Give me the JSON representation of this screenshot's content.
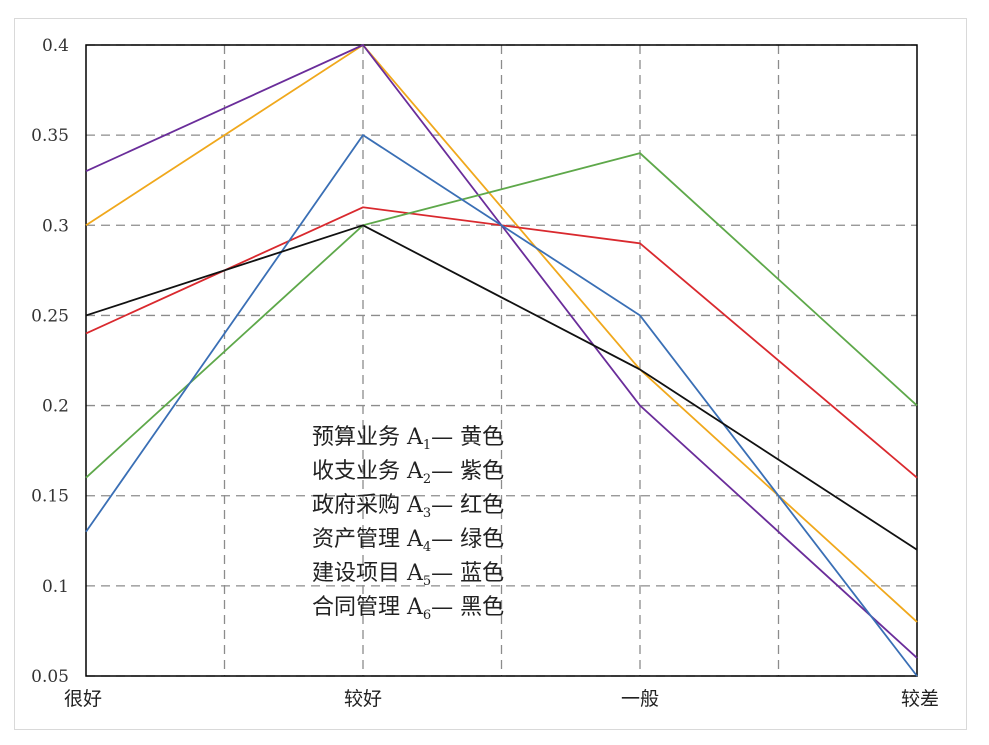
{
  "chart_data": {
    "type": "line",
    "categories": [
      "很好",
      "较好",
      "一般",
      "较差"
    ],
    "ylim": [
      0.05,
      0.4
    ],
    "yticks": [
      "0.4",
      "0.35",
      "0.3",
      "0.25",
      "0.2",
      "0.15",
      "0.1",
      "0.05"
    ],
    "grid": true,
    "series": [
      {
        "color": "#f0a81c",
        "values": [
          0.3,
          0.4,
          0.22,
          0.08
        ]
      },
      {
        "color": "#6a2d9a",
        "values": [
          0.33,
          0.4,
          0.2,
          0.06
        ]
      },
      {
        "color": "#d9292e",
        "values": [
          0.24,
          0.31,
          0.29,
          0.16
        ]
      },
      {
        "color": "#5ea84a",
        "values": [
          0.16,
          0.3,
          0.34,
          0.2
        ]
      },
      {
        "color": "#3a6fb5",
        "values": [
          0.13,
          0.35,
          0.25,
          0.05
        ]
      },
      {
        "color": "#111111",
        "values": [
          0.25,
          0.3,
          0.22,
          0.12
        ]
      }
    ],
    "legend": {
      "placement": "center",
      "entries": [
        {
          "name": "预算业务",
          "code": "A",
          "sub": "1",
          "sep": "—",
          "color_name": "黄色"
        },
        {
          "name": "收支业务",
          "code": "A",
          "sub": "2",
          "sep": "—",
          "color_name": "紫色"
        },
        {
          "name": "政府采购",
          "code": "A",
          "sub": "3",
          "sep": "—",
          "color_name": "红色"
        },
        {
          "name": "资产管理",
          "code": "A",
          "sub": "4",
          "sep": "—",
          "color_name": "绿色"
        },
        {
          "name": "建设项目",
          "code": "A",
          "sub": "5",
          "sep": "—",
          "color_name": "蓝色"
        },
        {
          "name": "合同管理",
          "code": "A",
          "sub": "6",
          "sep": "—",
          "color_name": "黑色"
        }
      ]
    }
  }
}
